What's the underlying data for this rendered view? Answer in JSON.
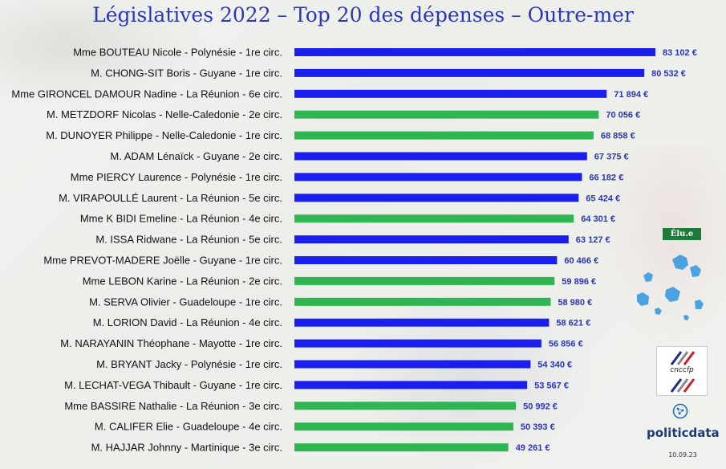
{
  "chart_data": {
    "type": "bar",
    "orientation": "horizontal",
    "title": "Législatives 2022 – Top 20 des dépenses – Outre-mer",
    "categories": [
      "Mme BOUTEAU Nicole -  Polynésie - 1re circ.",
      "M. CHONG-SIT Boris -  Guyane - 1re circ.",
      "Mme GIRONCEL DAMOUR Nadine -  La Réunion - 6e circ.",
      "M. METZDORF Nicolas -  Nelle-Caledonie - 2e circ.",
      "M. DUNOYER Philippe -  Nelle-Caledonie - 1re circ.",
      "M. ADAM Lénaïck -  Guyane - 2e circ.",
      "Mme PIERCY Laurence -  Polynésie - 1re circ.",
      "M. VIRAPOULLÉ Laurent -  La Réunion - 5e circ.",
      "Mme K BIDI Emeline -  La Réunion - 4e circ.",
      "M. ISSA Ridwane -  La Réunion - 5e circ.",
      "Mme PREVOT-MADERE Joëlle -  Guyane - 1re circ.",
      "Mme LEBON Karine -  La Réunion - 2e circ.",
      "M. SERVA Olivier -  Guadeloupe - 1re circ.",
      "M. LORION David -  La Réunion - 4e circ.",
      "M. NARAYANIN Théophane -  Mayotte - 1re circ.",
      "M. BRYANT Jacky -  Polynésie - 1re circ.",
      "M. LECHAT-VEGA Thibault -  Guyane - 1re circ.",
      "Mme BASSIRE Nathalie -  La Réunion - 3e circ.",
      "M. CALIFER Elie -  Guadeloupe - 4e circ.",
      "M. HAJJAR Johnny -  Martinique - 3e circ."
    ],
    "values": [
      83102,
      80532,
      71894,
      70056,
      68858,
      67375,
      66182,
      65424,
      64301,
      63127,
      60466,
      59896,
      58980,
      58621,
      56856,
      54340,
      53567,
      50992,
      50393,
      49261
    ],
    "value_labels": [
      "83 102 €",
      "80 532 €",
      "71 894 €",
      "70 056 €",
      "68 858 €",
      "67 375 €",
      "66 182 €",
      "65 424 €",
      "64 301 €",
      "63 127 €",
      "60 466 €",
      "59 896 €",
      "58 980 €",
      "58 621 €",
      "56 856 €",
      "54 340 €",
      "53 567 €",
      "50 992 €",
      "50 393 €",
      "49 261 €"
    ],
    "bar_status": [
      "not_elected",
      "not_elected",
      "not_elected",
      "elected",
      "elected",
      "not_elected",
      "not_elected",
      "not_elected",
      "elected",
      "not_elected",
      "not_elected",
      "elected",
      "elected",
      "not_elected",
      "not_elected",
      "not_elected",
      "not_elected",
      "elected",
      "elected",
      "elected"
    ],
    "colors": {
      "elected": "#2fb552",
      "not_elected": "#1a1ff0"
    },
    "legend_badge": "Élu.e",
    "xlim": [
      0,
      83102
    ],
    "grid": false
  },
  "branding": {
    "cnccfp": "cnccfp",
    "politicdata": "politicdata",
    "date": "10.09.23"
  }
}
